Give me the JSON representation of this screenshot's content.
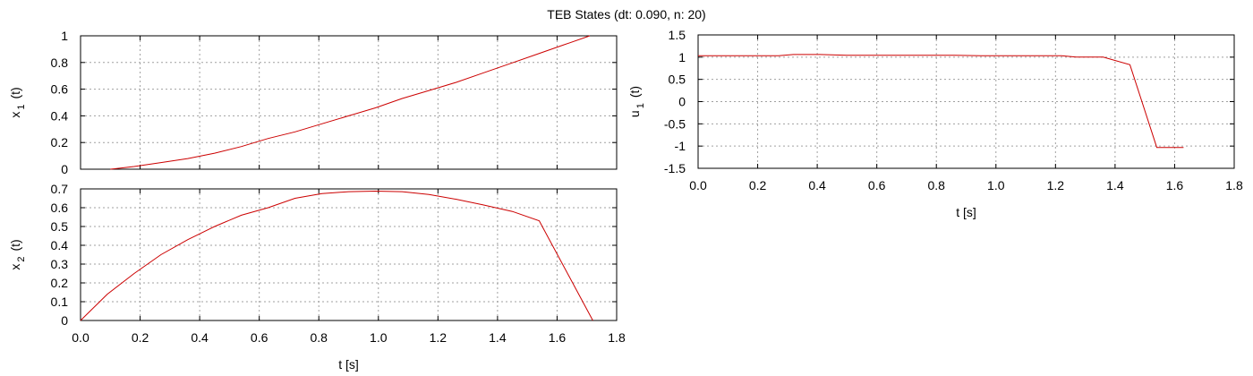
{
  "title": "TEB States (dt: 0.090, n: 20)",
  "colors": {
    "series": "#cc0000",
    "grid": "#a0a0a0",
    "axis": "#000000"
  },
  "chart_data": [
    {
      "id": "x1",
      "type": "line",
      "title": "",
      "ylabel": "x",
      "ylabel_sub": "1",
      "ylabel_suffix": "(t)",
      "xlabel": "",
      "xlim": [
        0.0,
        1.8
      ],
      "ylim": [
        0,
        1
      ],
      "xticks": [
        0.0,
        0.2,
        0.4,
        0.6,
        0.8,
        1.0,
        1.2,
        1.4,
        1.6,
        1.8
      ],
      "yticks": [
        0,
        0.2,
        0.4,
        0.6,
        0.8,
        1
      ],
      "ytick_labels": [
        "0",
        "0.2",
        "0.4",
        "0.6",
        "0.8",
        "1"
      ],
      "show_xtick_labels": false,
      "grid": true,
      "series": [
        {
          "x": [
            0.1,
            0.18,
            0.27,
            0.36,
            0.45,
            0.54,
            0.63,
            0.72,
            0.81,
            0.9,
            0.99,
            1.08,
            1.17,
            1.26,
            1.35,
            1.44,
            1.53,
            1.62,
            1.71
          ],
          "y": [
            0.0,
            0.02,
            0.05,
            0.08,
            0.12,
            0.17,
            0.23,
            0.28,
            0.34,
            0.4,
            0.46,
            0.53,
            0.59,
            0.65,
            0.72,
            0.79,
            0.86,
            0.93,
            1.0
          ]
        }
      ]
    },
    {
      "id": "x2",
      "type": "line",
      "title": "",
      "ylabel": "x",
      "ylabel_sub": "2",
      "ylabel_suffix": "(t)",
      "xlabel": "t [s]",
      "xlim": [
        0.0,
        1.8
      ],
      "ylim": [
        0,
        0.7
      ],
      "xticks": [
        0.0,
        0.2,
        0.4,
        0.6,
        0.8,
        1.0,
        1.2,
        1.4,
        1.6,
        1.8
      ],
      "xtick_labels": [
        "0.0",
        "0.2",
        "0.4",
        "0.6",
        "0.8",
        "1.0",
        "1.2",
        "1.4",
        "1.6",
        "1.8"
      ],
      "yticks": [
        0,
        0.1,
        0.2,
        0.3,
        0.4,
        0.5,
        0.6,
        0.7
      ],
      "ytick_labels": [
        "0",
        "0.1",
        "0.2",
        "0.3",
        "0.4",
        "0.5",
        "0.6",
        "0.7"
      ],
      "show_xtick_labels": true,
      "grid": true,
      "series": [
        {
          "x": [
            0.0,
            0.09,
            0.18,
            0.27,
            0.36,
            0.45,
            0.54,
            0.63,
            0.72,
            0.81,
            0.9,
            0.99,
            1.08,
            1.17,
            1.26,
            1.35,
            1.45,
            1.54,
            1.72
          ],
          "y": [
            0.0,
            0.14,
            0.25,
            0.35,
            0.43,
            0.5,
            0.56,
            0.6,
            0.65,
            0.675,
            0.685,
            0.688,
            0.685,
            0.67,
            0.645,
            0.615,
            0.58,
            0.53,
            0.0
          ]
        }
      ]
    },
    {
      "id": "u1",
      "type": "line",
      "title": "",
      "ylabel": "u",
      "ylabel_sub": "1",
      "ylabel_suffix": "(t)",
      "xlabel": "t [s]",
      "xlim": [
        0.0,
        1.8
      ],
      "ylim": [
        -1.5,
        1.5
      ],
      "xticks": [
        0.0,
        0.2,
        0.4,
        0.6,
        0.8,
        1.0,
        1.2,
        1.4,
        1.6,
        1.8
      ],
      "xtick_labels": [
        "0.0",
        "0.2",
        "0.4",
        "0.6",
        "0.8",
        "1.0",
        "1.2",
        "1.4",
        "1.6",
        "1.8"
      ],
      "yticks": [
        -1.5,
        -1,
        -0.5,
        0,
        0.5,
        1,
        1.5
      ],
      "ytick_labels": [
        "-1.5",
        "-1",
        "-0.5",
        "0",
        "0.5",
        "1",
        "1.5"
      ],
      "show_xtick_labels": true,
      "grid": true,
      "series": [
        {
          "x": [
            0.0,
            0.09,
            0.18,
            0.27,
            0.32,
            0.41,
            0.5,
            0.59,
            0.68,
            0.77,
            0.86,
            0.95,
            1.04,
            1.13,
            1.22,
            1.27,
            1.36,
            1.45,
            1.54,
            1.63
          ],
          "y": [
            1.03,
            1.03,
            1.03,
            1.03,
            1.06,
            1.06,
            1.04,
            1.04,
            1.04,
            1.04,
            1.04,
            1.03,
            1.03,
            1.03,
            1.03,
            1.0,
            1.0,
            0.83,
            -1.03,
            -1.03
          ]
        }
      ]
    }
  ]
}
